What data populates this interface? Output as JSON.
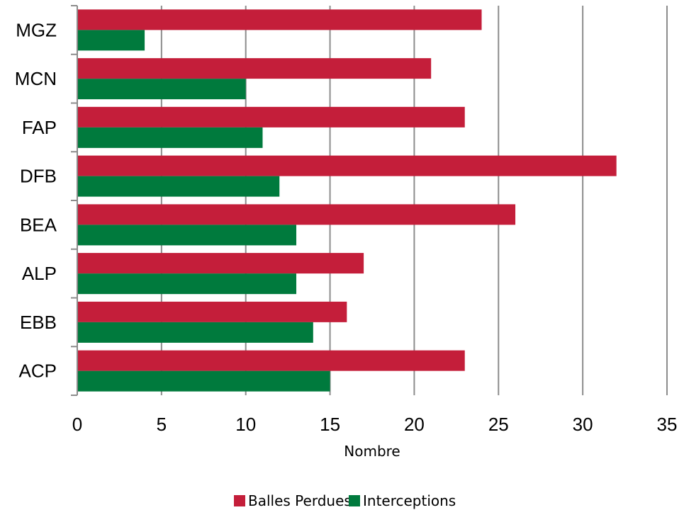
{
  "chart_data": {
    "type": "bar",
    "orientation": "horizontal",
    "categories": [
      "MGZ",
      "MCN",
      "FAP",
      "DFB",
      "BEA",
      "ALP",
      "EBB",
      "ACP"
    ],
    "series": [
      {
        "name": "Balles Perdues",
        "color": "#C41E3A",
        "values": [
          24,
          21,
          23,
          32,
          26,
          17,
          16,
          23
        ]
      },
      {
        "name": "Interceptions",
        "color": "#007A3D",
        "values": [
          4,
          10,
          11,
          12,
          13,
          13,
          14,
          15
        ]
      }
    ],
    "xlabel": "Nombre",
    "ylabel": "",
    "xlim": [
      0,
      35
    ],
    "xticks": [
      0,
      5,
      10,
      15,
      20,
      25,
      30,
      35
    ],
    "grid": "vertical",
    "legend_position": "bottom"
  }
}
